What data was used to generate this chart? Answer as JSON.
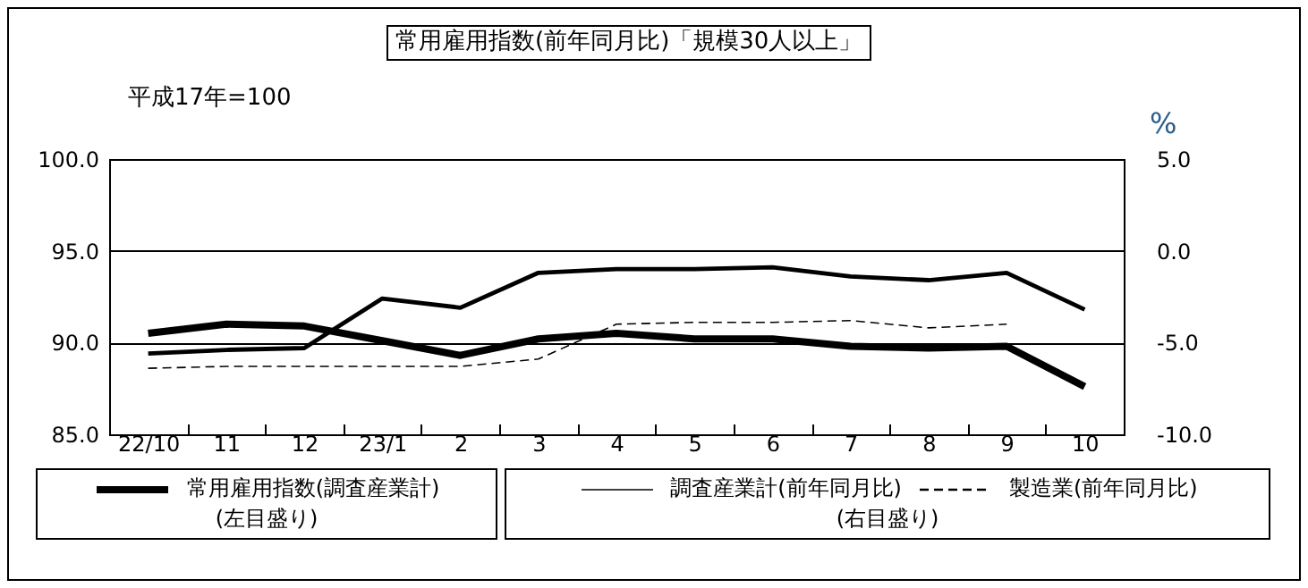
{
  "chart_data": {
    "type": "line",
    "title": "常用雇用指数(前年同月比)「規模30人以上」",
    "ylabel": "平成17年=100",
    "y2label": "%",
    "categories": [
      "22/10",
      "11",
      "12",
      "23/1",
      "2",
      "3",
      "4",
      "5",
      "6",
      "7",
      "8",
      "9",
      "10"
    ],
    "series": [
      {
        "name": "常用雇用指数(調査産業計)",
        "color": "#000000",
        "line_style": "solid",
        "values": [
          90.5,
          91.0,
          90.9,
          90.1,
          89.3,
          90.2,
          90.5,
          90.2,
          90.2,
          89.8,
          89.7,
          89.8,
          87.6
        ]
      },
      {
        "name": "調査産業計(前年同月比)",
        "color": "#000000",
        "axis": "y2",
        "line_style": "solid",
        "values": [
          -5.6,
          -5.4,
          -5.3,
          -2.6,
          -3.1,
          -1.2,
          -1.0,
          -1.0,
          -0.9,
          -1.4,
          -1.6,
          -1.2,
          -3.2
        ]
      },
      {
        "name": "製造業(前年同月比)",
        "color": "#000000",
        "axis": "y2",
        "line_style": "dashed",
        "values": [
          -6.4,
          -6.3,
          -6.3,
          -6.3,
          -6.3,
          -5.9,
          -4.0,
          -3.9,
          -3.9,
          -3.8,
          -4.2,
          -4.0,
          null
        ]
      }
    ],
    "annotations": [
      "(左目盛り)",
      "(右目盛り)"
    ],
    "ylim": [
      85,
      100
    ],
    "yticks": [
      {
        "value": 85,
        "label": "85.0"
      },
      {
        "value": 90,
        "label": "90.0"
      },
      {
        "value": 95,
        "label": "95.0"
      },
      {
        "value": 100,
        "label": "100.0"
      }
    ],
    "y2lim": [
      -10,
      5
    ],
    "y2ticks": [
      {
        "value": -10,
        "label": "-10.0"
      },
      {
        "value": -5,
        "label": "-5.0"
      },
      {
        "value": 0,
        "label": "0.0"
      },
      {
        "value": 5,
        "label": "5.0"
      }
    ],
    "grid": "y",
    "legend": "bottom"
  }
}
